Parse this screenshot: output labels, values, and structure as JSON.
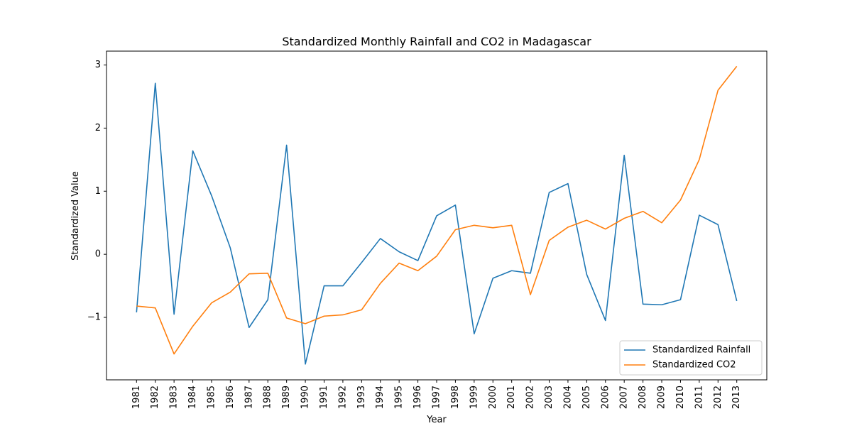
{
  "chart_data": {
    "type": "line",
    "title": "Standardized Monthly Rainfall and CO2 in Madagascar",
    "xlabel": "Year",
    "ylabel": "Standardized Value",
    "categories": [
      "1981",
      "1982",
      "1983",
      "1984",
      "1985",
      "1986",
      "1987",
      "1988",
      "1989",
      "1990",
      "1991",
      "1992",
      "1993",
      "1994",
      "1995",
      "1996",
      "1997",
      "1998",
      "1999",
      "2000",
      "2001",
      "2002",
      "2003",
      "2004",
      "2005",
      "2006",
      "2007",
      "2008",
      "2009",
      "2010",
      "2011",
      "2012",
      "2013"
    ],
    "yticks": [
      -1,
      0,
      1,
      2,
      3
    ],
    "ytick_labels": [
      "−1",
      "0",
      "1",
      "2",
      "3"
    ],
    "ylim": [
      -1.99,
      3.22
    ],
    "grid": false,
    "legend_position": "lower-right",
    "series": [
      {
        "name": "Standardized Rainfall",
        "color": "#1f77b4",
        "values": [
          -0.92,
          2.71,
          -0.95,
          1.64,
          0.93,
          0.1,
          -1.16,
          -0.72,
          1.73,
          -1.74,
          -0.5,
          -0.5,
          -0.13,
          0.25,
          0.04,
          -0.1,
          0.61,
          0.78,
          -1.26,
          -0.38,
          -0.26,
          -0.3,
          0.98,
          1.12,
          -0.32,
          -1.05,
          1.57,
          -0.79,
          -0.8,
          -0.72,
          0.62,
          0.47,
          -0.74
        ]
      },
      {
        "name": "Standardized CO2",
        "color": "#ff7f0e",
        "values": [
          -0.82,
          -0.85,
          -1.58,
          -1.14,
          -0.77,
          -0.6,
          -0.31,
          -0.3,
          -1.01,
          -1.1,
          -0.98,
          -0.96,
          -0.88,
          -0.46,
          -0.14,
          -0.26,
          -0.03,
          0.39,
          0.46,
          0.42,
          0.46,
          -0.64,
          0.22,
          0.43,
          0.54,
          0.4,
          0.57,
          0.68,
          0.5,
          0.86,
          1.5,
          2.6,
          2.98
        ]
      }
    ]
  }
}
